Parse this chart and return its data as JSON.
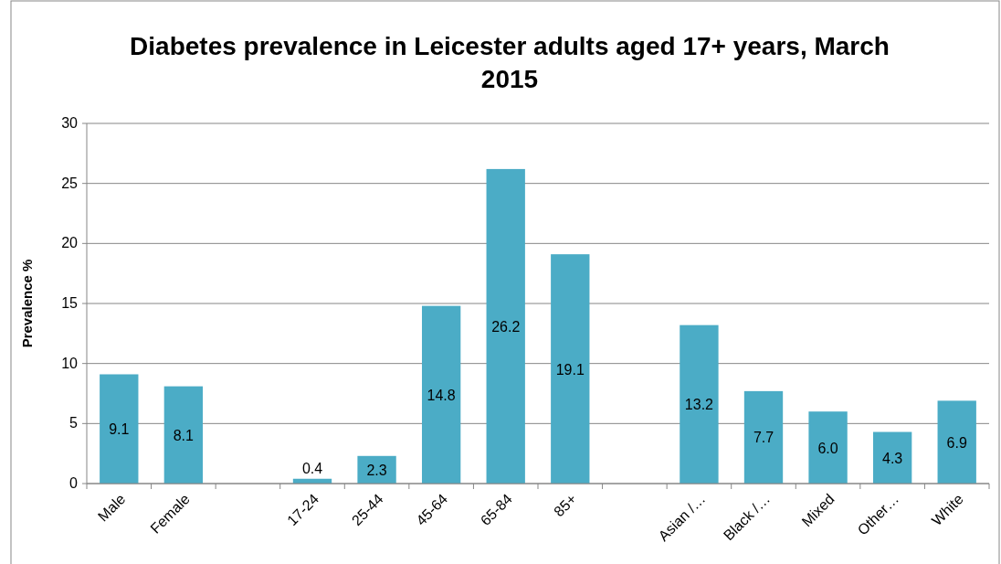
{
  "chart_data": {
    "type": "bar",
    "title": "Diabetes prevalence in Leicester adults aged 17+ years, March 2015",
    "ylabel": "Prevalence %",
    "categories": [
      "Male",
      "Female",
      null,
      "17-24",
      "25-44",
      "45-64",
      "65-84",
      "85+",
      null,
      "Asian /…",
      "Black /…",
      "Mixed",
      "Other…",
      "White"
    ],
    "values": [
      9.1,
      8.1,
      null,
      0.4,
      2.3,
      14.8,
      26.2,
      19.1,
      null,
      13.2,
      7.7,
      6.0,
      4.3,
      6.9
    ],
    "value_labels": [
      "9.1",
      "8.1",
      null,
      "0.4",
      "2.3",
      "14.8",
      "26.2",
      "19.1",
      null,
      "13.2",
      "7.7",
      "6.0",
      "4.3",
      "6.9"
    ],
    "color": "#4bacc6",
    "ylim": [
      0,
      30
    ],
    "yticks": [
      0,
      5,
      10,
      15,
      20,
      25,
      30
    ],
    "grid": "y"
  }
}
